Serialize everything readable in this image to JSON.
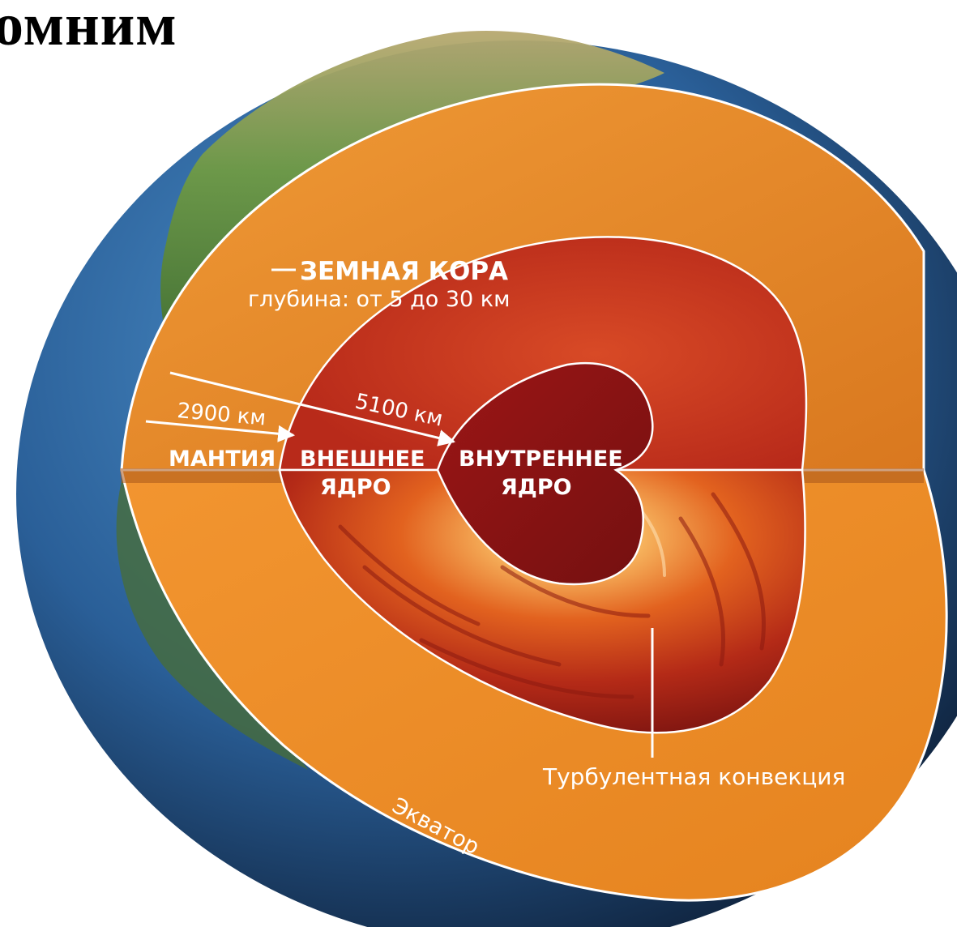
{
  "title": "омним",
  "labels": {
    "crust": "ЗЕМНАЯ КОРА",
    "crust_depth": "глубина: от 5 до 30 км",
    "depth_mantle": "2900 км",
    "depth_outer_core": "5100 км",
    "mantle": "МАНТИЯ",
    "outer_core_line1": "ВНЕШНЕЕ",
    "outer_core_line2": "ЯДРО",
    "inner_core_line1": "ВНУТРЕННЕЕ",
    "inner_core_line2": "ЯДРО",
    "convection": "Турбулентная конвекция",
    "equator": "Экватор"
  },
  "colors": {
    "mantle": "#e98a2a",
    "mantle_lower": "#f0902c",
    "outer_core": "#c9351f",
    "inner_core": "#8a1212",
    "ocean": "#2f6fb0",
    "land": "#5c8a3a",
    "label": "#ffffff"
  }
}
